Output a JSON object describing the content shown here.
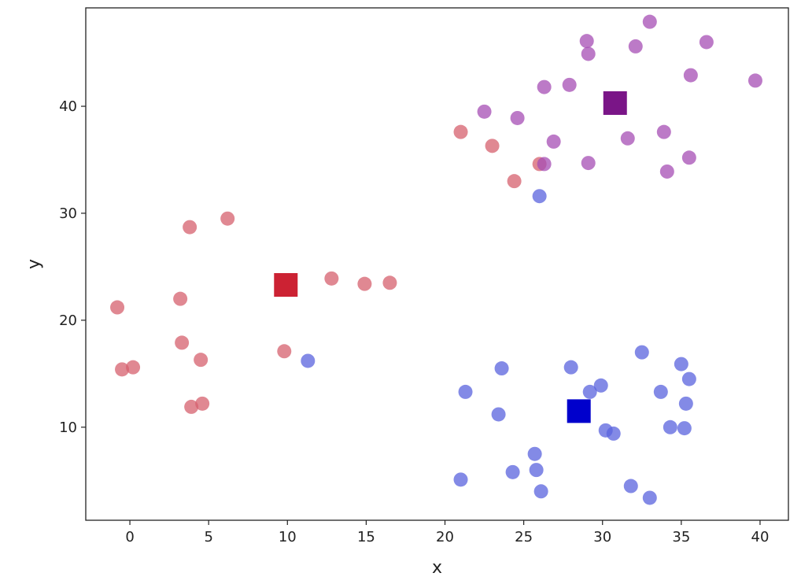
{
  "chart_data": {
    "type": "scatter",
    "xlabel": "x",
    "ylabel": "y",
    "xlim": [
      -2.8,
      41.8
    ],
    "ylim": [
      1.3,
      49.2
    ],
    "xticks": [
      0,
      5,
      10,
      15,
      20,
      25,
      30,
      35,
      40
    ],
    "yticks": [
      10,
      20,
      30,
      40
    ],
    "grid": false,
    "series": [
      {
        "color": "#d6606d",
        "points": [
          [
            -0.8,
            21.2
          ],
          [
            -0.5,
            15.4
          ],
          [
            0.2,
            15.6
          ],
          [
            3.2,
            22.0
          ],
          [
            3.3,
            17.9
          ],
          [
            3.8,
            28.7
          ],
          [
            3.9,
            11.9
          ],
          [
            4.5,
            16.3
          ],
          [
            4.6,
            12.2
          ],
          [
            6.2,
            29.5
          ],
          [
            9.8,
            17.1
          ],
          [
            12.8,
            23.9
          ],
          [
            14.9,
            23.4
          ],
          [
            16.5,
            23.5
          ],
          [
            21.0,
            37.6
          ],
          [
            23.0,
            36.3
          ],
          [
            24.4,
            33.0
          ],
          [
            26.0,
            34.6
          ]
        ]
      },
      {
        "color": "#5a63dd",
        "points": [
          [
            11.3,
            16.2
          ],
          [
            21.0,
            5.1
          ],
          [
            21.3,
            13.3
          ],
          [
            23.4,
            11.2
          ],
          [
            23.6,
            15.5
          ],
          [
            24.3,
            5.8
          ],
          [
            25.7,
            7.5
          ],
          [
            25.8,
            6.0
          ],
          [
            26.0,
            31.6
          ],
          [
            26.1,
            4.0
          ],
          [
            28.0,
            15.6
          ],
          [
            29.2,
            13.3
          ],
          [
            29.9,
            13.9
          ],
          [
            30.2,
            9.7
          ],
          [
            30.7,
            9.4
          ],
          [
            31.8,
            4.5
          ],
          [
            32.5,
            17.0
          ],
          [
            33.0,
            3.4
          ],
          [
            33.7,
            13.3
          ],
          [
            34.3,
            10.0
          ],
          [
            35.0,
            15.9
          ],
          [
            35.2,
            9.9
          ],
          [
            35.3,
            12.2
          ],
          [
            35.5,
            14.5
          ]
        ]
      },
      {
        "color": "#a64db4",
        "points": [
          [
            22.5,
            39.5
          ],
          [
            24.6,
            38.9
          ],
          [
            26.3,
            41.8
          ],
          [
            26.3,
            34.6
          ],
          [
            26.9,
            36.7
          ],
          [
            27.9,
            42.0
          ],
          [
            29.0,
            46.1
          ],
          [
            29.1,
            44.9
          ],
          [
            29.1,
            34.7
          ],
          [
            31.6,
            37.0
          ],
          [
            32.1,
            45.6
          ],
          [
            33.0,
            47.9
          ],
          [
            33.9,
            37.6
          ],
          [
            34.1,
            33.9
          ],
          [
            35.5,
            35.2
          ],
          [
            35.6,
            42.9
          ],
          [
            36.6,
            46.0
          ],
          [
            39.7,
            42.4
          ]
        ]
      }
    ],
    "centroids": [
      {
        "x": 9.9,
        "y": 23.3,
        "color": "#cc2233"
      },
      {
        "x": 28.5,
        "y": 11.5,
        "color": "#0000cc"
      },
      {
        "x": 30.8,
        "y": 40.3,
        "color": "#7a1587"
      }
    ]
  }
}
